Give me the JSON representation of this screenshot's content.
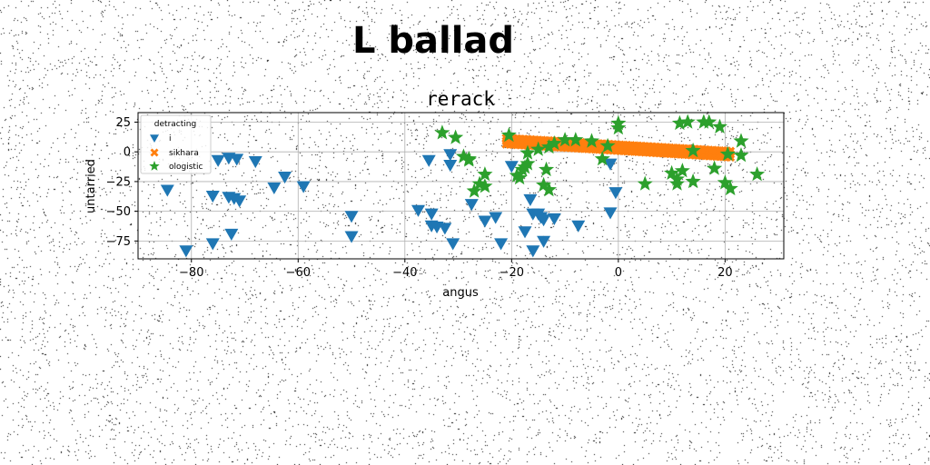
{
  "suptitle": "L ballad",
  "chart_data": {
    "type": "scatter",
    "title": "rerack",
    "xlabel": "angus",
    "ylabel": "untarried",
    "xlim": [
      -90,
      31
    ],
    "ylim": [
      -90,
      33
    ],
    "xticks": [
      -80,
      -60,
      -40,
      -20,
      0,
      20
    ],
    "yticks": [
      25,
      0,
      -25,
      -50,
      -75
    ],
    "xtick_labels": [
      "−80",
      "−60",
      "−40",
      "−20",
      "0",
      "20"
    ],
    "ytick_labels": [
      "25",
      "0",
      "−25",
      "−50",
      "−75"
    ],
    "grid": true,
    "legend": {
      "title": "detracting",
      "placement": "upper-left"
    },
    "series": [
      {
        "name": "i",
        "marker": "triangle-down",
        "color": "#1f77b4",
        "points": [
          [
            -84.5,
            -32
          ],
          [
            -81,
            -83
          ],
          [
            -76,
            -37
          ],
          [
            -76,
            -77
          ],
          [
            -75,
            -7
          ],
          [
            -73,
            -5
          ],
          [
            -73,
            -38
          ],
          [
            -72.5,
            -69
          ],
          [
            -72,
            -39
          ],
          [
            -71.5,
            -6
          ],
          [
            -71,
            -41
          ],
          [
            -68,
            -8
          ],
          [
            -64.5,
            -30
          ],
          [
            -62.5,
            -21
          ],
          [
            -59,
            -29
          ],
          [
            -50,
            -54
          ],
          [
            -50,
            -71
          ],
          [
            -37.5,
            -49
          ],
          [
            -35.5,
            -7
          ],
          [
            -35,
            -52
          ],
          [
            -35,
            -62
          ],
          [
            -34,
            -63
          ],
          [
            -32.5,
            -64
          ],
          [
            -31.5,
            -2
          ],
          [
            -31.5,
            -11
          ],
          [
            -31,
            -77
          ],
          [
            -27.5,
            -44
          ],
          [
            -25,
            -58
          ],
          [
            -23,
            -55
          ],
          [
            -22,
            -77
          ],
          [
            -20,
            -12
          ],
          [
            -17.5,
            -67
          ],
          [
            -16.5,
            -40
          ],
          [
            -16,
            -52
          ],
          [
            -16,
            -83
          ],
          [
            -15,
            -52
          ],
          [
            -14.5,
            -55
          ],
          [
            -14,
            -57
          ],
          [
            -14,
            -75
          ],
          [
            -12,
            -56
          ],
          [
            -7.5,
            -62
          ],
          [
            -1.5,
            -10
          ],
          [
            -1.5,
            -51
          ],
          [
            -0.5,
            -34
          ]
        ]
      },
      {
        "name": "sikhara",
        "marker": "x-filled",
        "color": "#ff7f0e",
        "line": {
          "from": [
            -21,
            9
          ],
          "to": [
            21,
            -2
          ],
          "count": 64,
          "band": 5
        }
      },
      {
        "name": "ologistic",
        "marker": "star",
        "color": "#2ca02c",
        "points": [
          [
            -33,
            16
          ],
          [
            -30.5,
            12
          ],
          [
            -29,
            -4
          ],
          [
            -28,
            -7
          ],
          [
            -28,
            -6
          ],
          [
            -27,
            -33
          ],
          [
            -26,
            -27
          ],
          [
            -25,
            -19
          ],
          [
            -25,
            -29
          ],
          [
            -20.5,
            14
          ],
          [
            -19,
            -20
          ],
          [
            -18.5,
            -22
          ],
          [
            -18,
            -15
          ],
          [
            -17.5,
            -13
          ],
          [
            -17,
            -10
          ],
          [
            -17,
            -1
          ],
          [
            -15,
            2
          ],
          [
            -14,
            -28
          ],
          [
            -13.5,
            -15
          ],
          [
            -13,
            -32
          ],
          [
            -13,
            4
          ],
          [
            -12,
            7
          ],
          [
            -10,
            10
          ],
          [
            -8,
            10
          ],
          [
            -5,
            9
          ],
          [
            -3,
            -6
          ],
          [
            -2,
            5
          ],
          [
            0,
            24
          ],
          [
            0,
            20
          ],
          [
            5,
            -27
          ],
          [
            10,
            -18
          ],
          [
            11,
            -23
          ],
          [
            11,
            -27
          ],
          [
            11.5,
            24
          ],
          [
            12,
            -16
          ],
          [
            13,
            25
          ],
          [
            14,
            -25
          ],
          [
            14,
            1
          ],
          [
            16,
            25
          ],
          [
            17,
            25
          ],
          [
            18,
            -14
          ],
          [
            19,
            21
          ],
          [
            20,
            -26
          ],
          [
            20.5,
            -2
          ],
          [
            21,
            -31
          ],
          [
            23,
            9
          ],
          [
            23,
            -3
          ],
          [
            26,
            -19
          ]
        ]
      }
    ]
  }
}
